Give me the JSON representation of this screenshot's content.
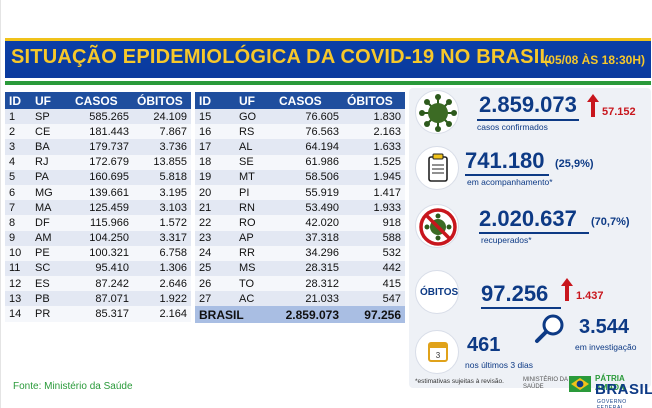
{
  "header": {
    "title": "SITUAÇÃO EPIDEMIOLÓGICA DA COVID-19 NO BRASIL",
    "date": "(05/08 ÀS 18:30H)"
  },
  "table": {
    "columns": [
      "ID",
      "UF",
      "CASOS",
      "ÓBITOS"
    ],
    "left_rows": [
      [
        "1",
        "SP",
        "585.265",
        "24.109"
      ],
      [
        "2",
        "CE",
        "181.443",
        "7.867"
      ],
      [
        "3",
        "BA",
        "179.737",
        "3.736"
      ],
      [
        "4",
        "RJ",
        "172.679",
        "13.855"
      ],
      [
        "5",
        "PA",
        "160.695",
        "5.818"
      ],
      [
        "6",
        "MG",
        "139.661",
        "3.195"
      ],
      [
        "7",
        "MA",
        "125.459",
        "3.103"
      ],
      [
        "8",
        "DF",
        "115.966",
        "1.572"
      ],
      [
        "9",
        "AM",
        "104.250",
        "3.317"
      ],
      [
        "10",
        "PE",
        "100.321",
        "6.758"
      ],
      [
        "11",
        "SC",
        "95.410",
        "1.306"
      ],
      [
        "12",
        "ES",
        "87.242",
        "2.646"
      ],
      [
        "13",
        "PB",
        "87.071",
        "1.922"
      ],
      [
        "14",
        "PR",
        "85.317",
        "2.164"
      ]
    ],
    "right_rows": [
      [
        "15",
        "GO",
        "76.605",
        "1.830"
      ],
      [
        "16",
        "RS",
        "76.563",
        "2.163"
      ],
      [
        "17",
        "AL",
        "64.194",
        "1.633"
      ],
      [
        "18",
        "SE",
        "61.986",
        "1.525"
      ],
      [
        "19",
        "MT",
        "58.506",
        "1.945"
      ],
      [
        "20",
        "PI",
        "55.919",
        "1.417"
      ],
      [
        "21",
        "RN",
        "53.490",
        "1.933"
      ],
      [
        "22",
        "RO",
        "42.020",
        "918"
      ],
      [
        "23",
        "AP",
        "37.318",
        "588"
      ],
      [
        "24",
        "RR",
        "34.296",
        "532"
      ],
      [
        "25",
        "MS",
        "28.315",
        "442"
      ],
      [
        "26",
        "TO",
        "28.312",
        "415"
      ],
      [
        "27",
        "AC",
        "21.033",
        "547"
      ]
    ],
    "total": {
      "label": "BRASIL",
      "casos": "2.859.073",
      "obitos": "97.256"
    }
  },
  "source": "Fonte: Ministério da Saúde",
  "stats": {
    "confirmed": {
      "value": "2.859.073",
      "label": "casos confirmados",
      "delta": "57.152"
    },
    "monitoring": {
      "value": "741.180",
      "pct": "(25,9%)",
      "label": "em acompanhamento*"
    },
    "recovered": {
      "value": "2.020.637",
      "pct": "(70,7%)",
      "label": "recuperados*"
    },
    "deaths": {
      "icon_label": "ÓBITOS",
      "value": "97.256",
      "delta": "1.437"
    },
    "last3days": {
      "value": "461",
      "label": "nos últimos 3 dias"
    },
    "investigation": {
      "value": "3.544",
      "label": "em investigação"
    }
  },
  "footnote": "*estimativas sujeitas à revisão.",
  "logos": {
    "ministerio_line1": "MINISTÉRIO DA",
    "ministerio_line2": "SAÚDE",
    "patria": "PÁTRIA AMADA",
    "brasil": "BRASIL",
    "gov": "GOVERNO FEDERAL"
  },
  "colors": {
    "banner": "#0a3a9d",
    "title": "#f7c82a",
    "table_header": "#1f4e9e",
    "accent_red": "#c8161d",
    "stat_blue": "#0d3a85",
    "green": "#2a9a3a"
  }
}
